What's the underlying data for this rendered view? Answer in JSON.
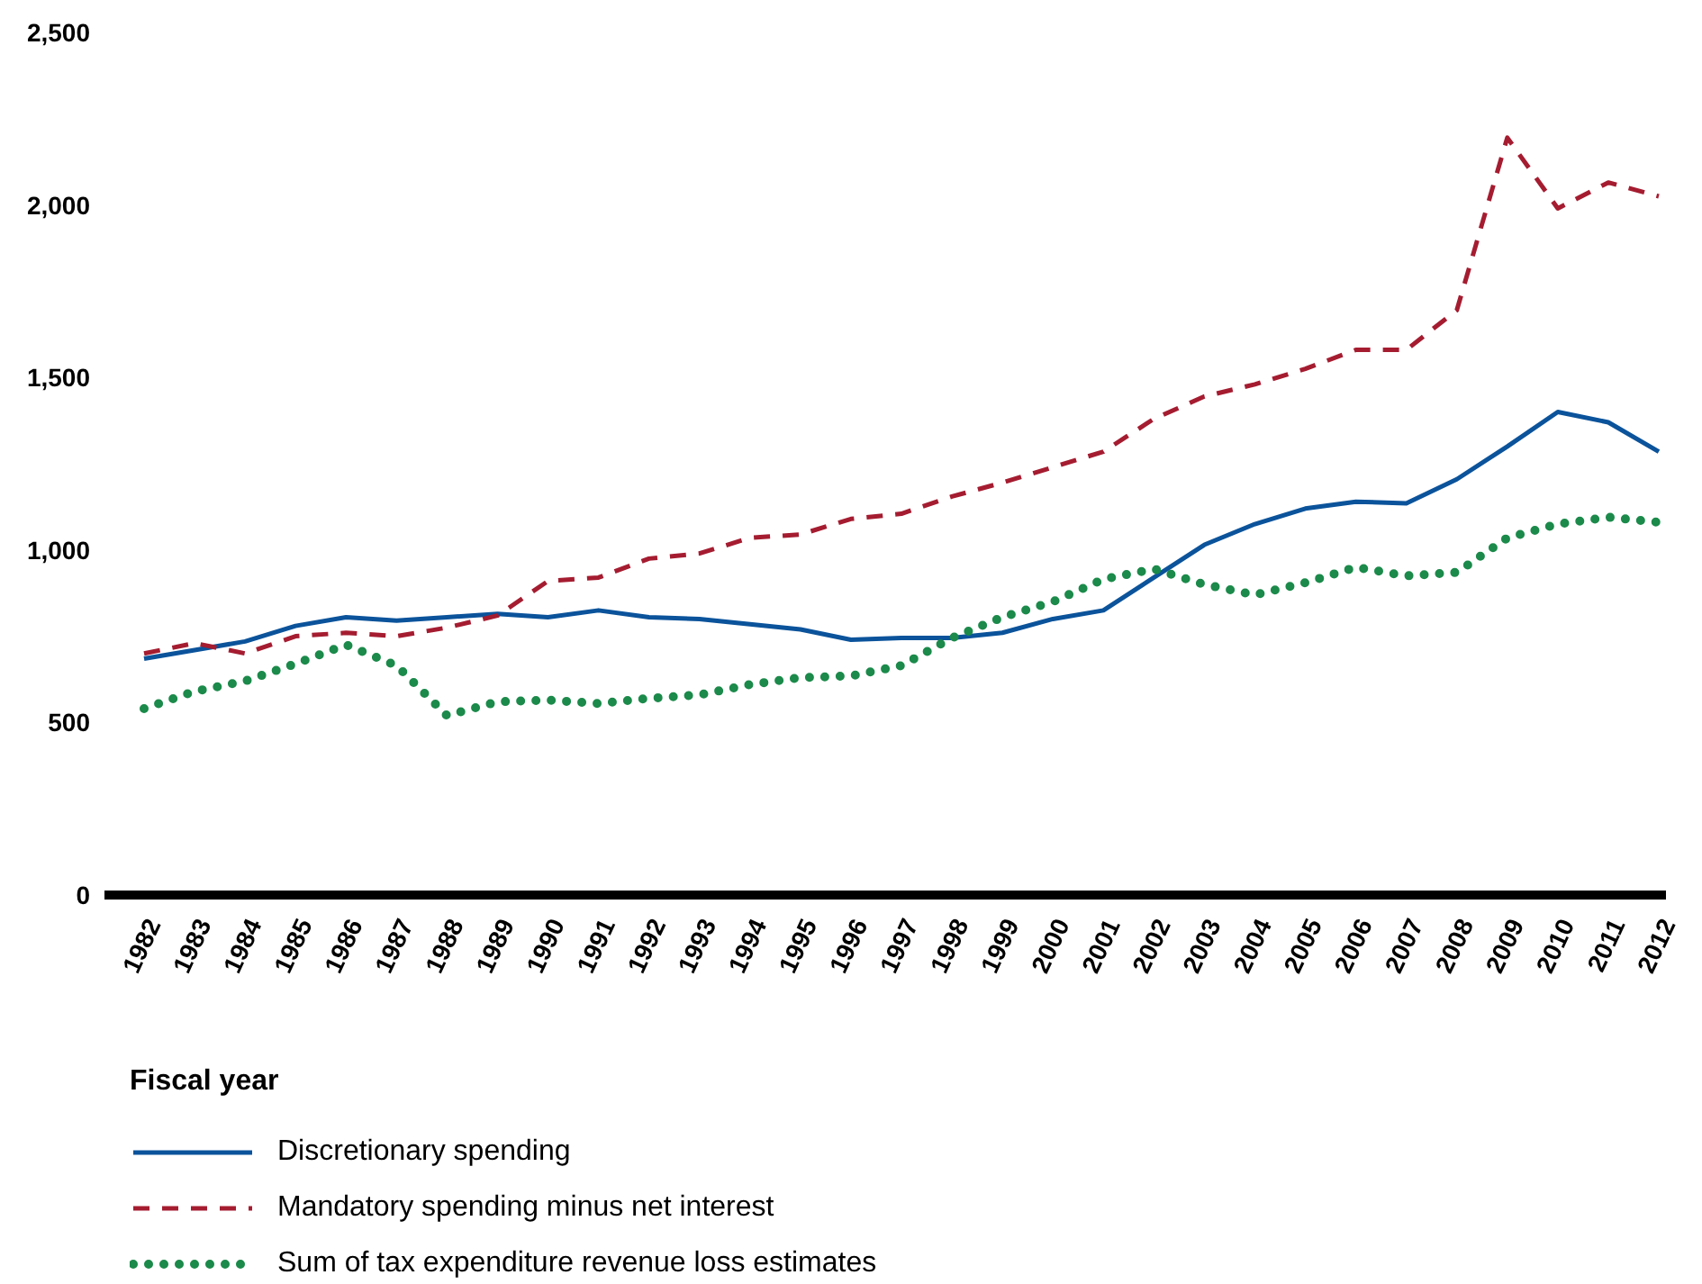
{
  "chart_data": {
    "type": "line",
    "xlabel": "Fiscal year",
    "categories": [
      "1982",
      "1983",
      "1984",
      "1985",
      "1986",
      "1987",
      "1988",
      "1989",
      "1990",
      "1991",
      "1992",
      "1993",
      "1994",
      "1995",
      "1996",
      "1997",
      "1998",
      "1999",
      "2000",
      "2001",
      "2002",
      "2003",
      "2004",
      "2005",
      "2006",
      "2007",
      "2008",
      "2009",
      "2010",
      "2011",
      "2012"
    ],
    "series": [
      {
        "name": "Discretionary spending",
        "color": "#0b539b",
        "line_style": "solid",
        "values": [
          685,
          710,
          735,
          780,
          805,
          795,
          805,
          815,
          805,
          825,
          805,
          800,
          785,
          770,
          740,
          745,
          745,
          760,
          800,
          825,
          920,
          1015,
          1075,
          1120,
          1140,
          1135,
          1205,
          1300,
          1400,
          1370,
          1285
        ]
      },
      {
        "name": "Mandatory spending minus net interest",
        "color": "#a51c30",
        "line_style": "dashed",
        "values": [
          700,
          730,
          700,
          750,
          760,
          750,
          775,
          810,
          910,
          920,
          975,
          990,
          1035,
          1045,
          1090,
          1105,
          1155,
          1195,
          1240,
          1285,
          1380,
          1445,
          1480,
          1525,
          1580,
          1580,
          1695,
          2195,
          1990,
          2065,
          2025
        ]
      },
      {
        "name": "Sum of tax expenditure revenue loss estimates",
        "color": "#1b8a4a",
        "line_style": "dotted",
        "values": [
          540,
          590,
          620,
          670,
          725,
          665,
          520,
          560,
          565,
          555,
          570,
          580,
          610,
          630,
          635,
          665,
          745,
          805,
          850,
          915,
          945,
          900,
          870,
          905,
          950,
          925,
          935,
          1035,
          1075,
          1095,
          1080
        ]
      }
    ],
    "ylim": [
      0,
      2500
    ],
    "yticks": [
      0,
      500,
      {
        "value": 1000,
        "label": "1,000"
      },
      {
        "value": 1500,
        "label": "1,500"
      },
      {
        "value": 2000,
        "label": "2,000"
      },
      {
        "value": 2500,
        "label": "2,500"
      }
    ],
    "grid": false,
    "legend": "bottom",
    "marker": "none"
  }
}
